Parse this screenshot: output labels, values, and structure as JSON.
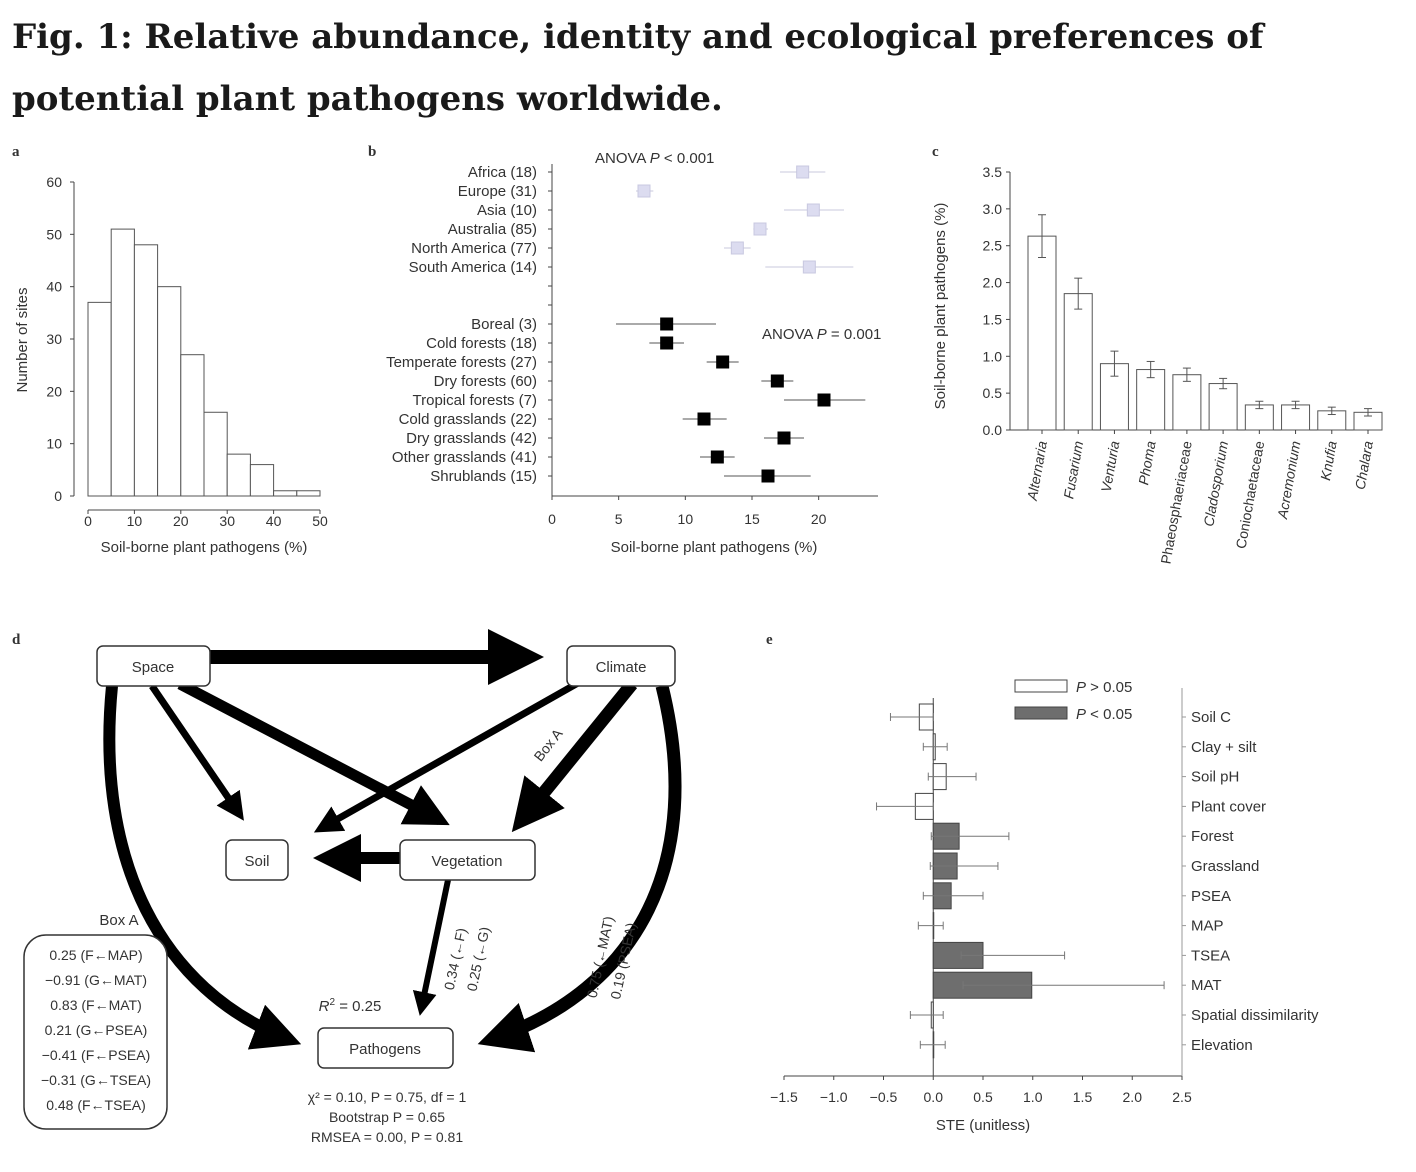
{
  "figure_title": "Fig. 1: Relative abundance, identity and ecological preferences of potential plant pathogens worldwide.",
  "chart_data": [
    {
      "panel": "a",
      "type": "bar",
      "xlabel": "Soil-borne plant pathogens (%)",
      "ylabel": "Number of sites",
      "bin_edges": [
        0,
        5,
        10,
        15,
        20,
        25,
        30,
        35,
        40,
        45,
        50
      ],
      "values": [
        37,
        51,
        48,
        40,
        27,
        16,
        8,
        6,
        1,
        1
      ],
      "xticks": [
        "0",
        "10",
        "20",
        "30",
        "40",
        "50"
      ],
      "xlim": [
        0,
        50
      ],
      "yticks": [
        "0",
        "10",
        "20",
        "30",
        "40",
        "50",
        "60"
      ],
      "ylim": [
        0,
        60
      ]
    },
    {
      "panel": "b",
      "type": "scatter",
      "xlabel": "Soil-borne plant pathogens (%)",
      "xticks": [
        "0",
        "5",
        "10",
        "15",
        "20"
      ],
      "xlim": [
        0,
        24
      ],
      "annotations": [
        {
          "text": "ANOVA ",
          "italic": "P",
          "rest": " < 0.001"
        },
        {
          "text": "ANOVA ",
          "italic": "P",
          "rest": " = 0.001"
        }
      ],
      "series": [
        {
          "name": "continents",
          "color": "#dcdcf0",
          "categories": [
            "Africa (18)",
            "Europe (31)",
            "Asia (10)",
            "Australia (85)",
            "North America (77)",
            "South America (14)"
          ],
          "values": [
            18.8,
            6.9,
            19.6,
            15.6,
            13.9,
            19.3
          ],
          "lower": [
            17.1,
            6.3,
            17.4,
            15.1,
            12.9,
            16.0
          ],
          "upper": [
            20.5,
            7.6,
            21.9,
            16.2,
            14.9,
            22.6
          ]
        },
        {
          "name": "biomes",
          "color": "#000000",
          "categories": [
            "Boreal (3)",
            "Cold forests (18)",
            "Temperate forests (27)",
            "Dry forests (60)",
            "Tropical forests (7)",
            "Cold grasslands (22)",
            "Dry grasslands (42)",
            "Other grasslands (41)",
            "Shrublands (15)"
          ],
          "values": [
            8.6,
            8.6,
            12.8,
            16.9,
            20.4,
            11.4,
            17.4,
            12.4,
            16.2
          ],
          "lower": [
            4.8,
            7.3,
            11.6,
            15.7,
            17.4,
            9.8,
            15.9,
            11.1,
            12.9
          ],
          "upper": [
            12.3,
            9.9,
            14.0,
            18.1,
            23.5,
            13.1,
            18.9,
            13.7,
            19.4
          ]
        }
      ]
    },
    {
      "panel": "c",
      "type": "bar",
      "ylabel": "Soil-borne plant pathogens (%)",
      "categories": [
        "Alternaria",
        "Fusarium",
        "Venturia",
        "Phoma",
        "Phaeosphaeriaceae",
        "Cladosporium",
        "Coniochaetaceae",
        "Acremonium",
        "Knufia",
        "Chalara"
      ],
      "italic_categories": [
        true,
        true,
        true,
        true,
        false,
        true,
        false,
        true,
        true,
        true
      ],
      "values": [
        2.63,
        1.85,
        0.9,
        0.82,
        0.75,
        0.63,
        0.34,
        0.34,
        0.26,
        0.24
      ],
      "errors": [
        0.29,
        0.21,
        0.17,
        0.11,
        0.09,
        0.07,
        0.05,
        0.05,
        0.05,
        0.05
      ],
      "yticks": [
        "0.0",
        "0.5",
        "1.0",
        "1.5",
        "2.0",
        "2.5",
        "3.0",
        "3.5"
      ],
      "ylim": [
        0,
        3.5
      ]
    },
    {
      "panel": "e",
      "type": "bar",
      "orientation": "horizontal",
      "xlabel": "STE (unitless)",
      "xticks": [
        "−1.5",
        "−1.0",
        "−0.5",
        "0.0",
        "0.5",
        "1.0",
        "1.5",
        "2.0",
        "2.5"
      ],
      "xlim": [
        -1.5,
        2.5
      ],
      "legend": [
        {
          "label_pre": "",
          "italic": "P",
          "rest": " > 0.05",
          "color": "#ffffff"
        },
        {
          "label_pre": "",
          "italic": "P",
          "rest": " < 0.05",
          "color": "#6e6e6e"
        }
      ],
      "legend_position": "top-center",
      "categories": [
        "Soil C",
        "Clay + silt",
        "Soil pH",
        "Plant cover",
        "Forest",
        "Grassland",
        "PSEA",
        "MAP",
        "TSEA",
        "MAT",
        "Spatial dissimilarity",
        "Elevation"
      ],
      "values": [
        -0.14,
        0.02,
        0.13,
        -0.18,
        0.26,
        0.24,
        0.18,
        0.0,
        0.5,
        0.99,
        -0.02,
        0.0
      ],
      "lower": [
        -0.43,
        -0.1,
        -0.05,
        -0.57,
        -0.02,
        -0.03,
        -0.1,
        -0.15,
        0.28,
        0.3,
        -0.23,
        -0.13
      ],
      "upper": [
        0.0,
        0.14,
        0.43,
        0.0,
        0.76,
        0.65,
        0.5,
        0.1,
        1.32,
        2.32,
        0.1,
        0.12
      ],
      "significant": [
        false,
        false,
        false,
        false,
        true,
        true,
        true,
        false,
        true,
        true,
        false,
        false
      ]
    }
  ],
  "panel_labels": {
    "a": "a",
    "b": "b",
    "c": "c",
    "d": "d",
    "e": "e"
  },
  "diagram_d": {
    "nodes": {
      "space": "Space",
      "climate": "Climate",
      "soil": "Soil",
      "vegetation": "Vegetation",
      "pathogens": "Pathogens"
    },
    "edge_labels": {
      "box_a": "Box A",
      "veg_path_1": "0.34 (←F)",
      "veg_path_2": "0.25 (←G)",
      "clim_path_1": "0.75 (←MAT)",
      "clim_path_2": "0.19 (PSEA)"
    },
    "r2": {
      "italic": "R",
      "sup": "2",
      "rest": " = 0.25"
    },
    "box_a": {
      "title": "Box A",
      "items": [
        "0.25 (F←MAP)",
        "−0.91 (G←MAT)",
        "0.83 (F←MAT)",
        "0.21 (G←PSEA)",
        "−0.41 (F←PSEA)",
        "−0.31 (G←TSEA)",
        "0.48 (F←TSEA)"
      ]
    },
    "stats": [
      "χ² = 0.10, P = 0.75, df = 1",
      "Bootstrap P = 0.65",
      "RMSEA = 0.00, P = 0.81"
    ]
  }
}
